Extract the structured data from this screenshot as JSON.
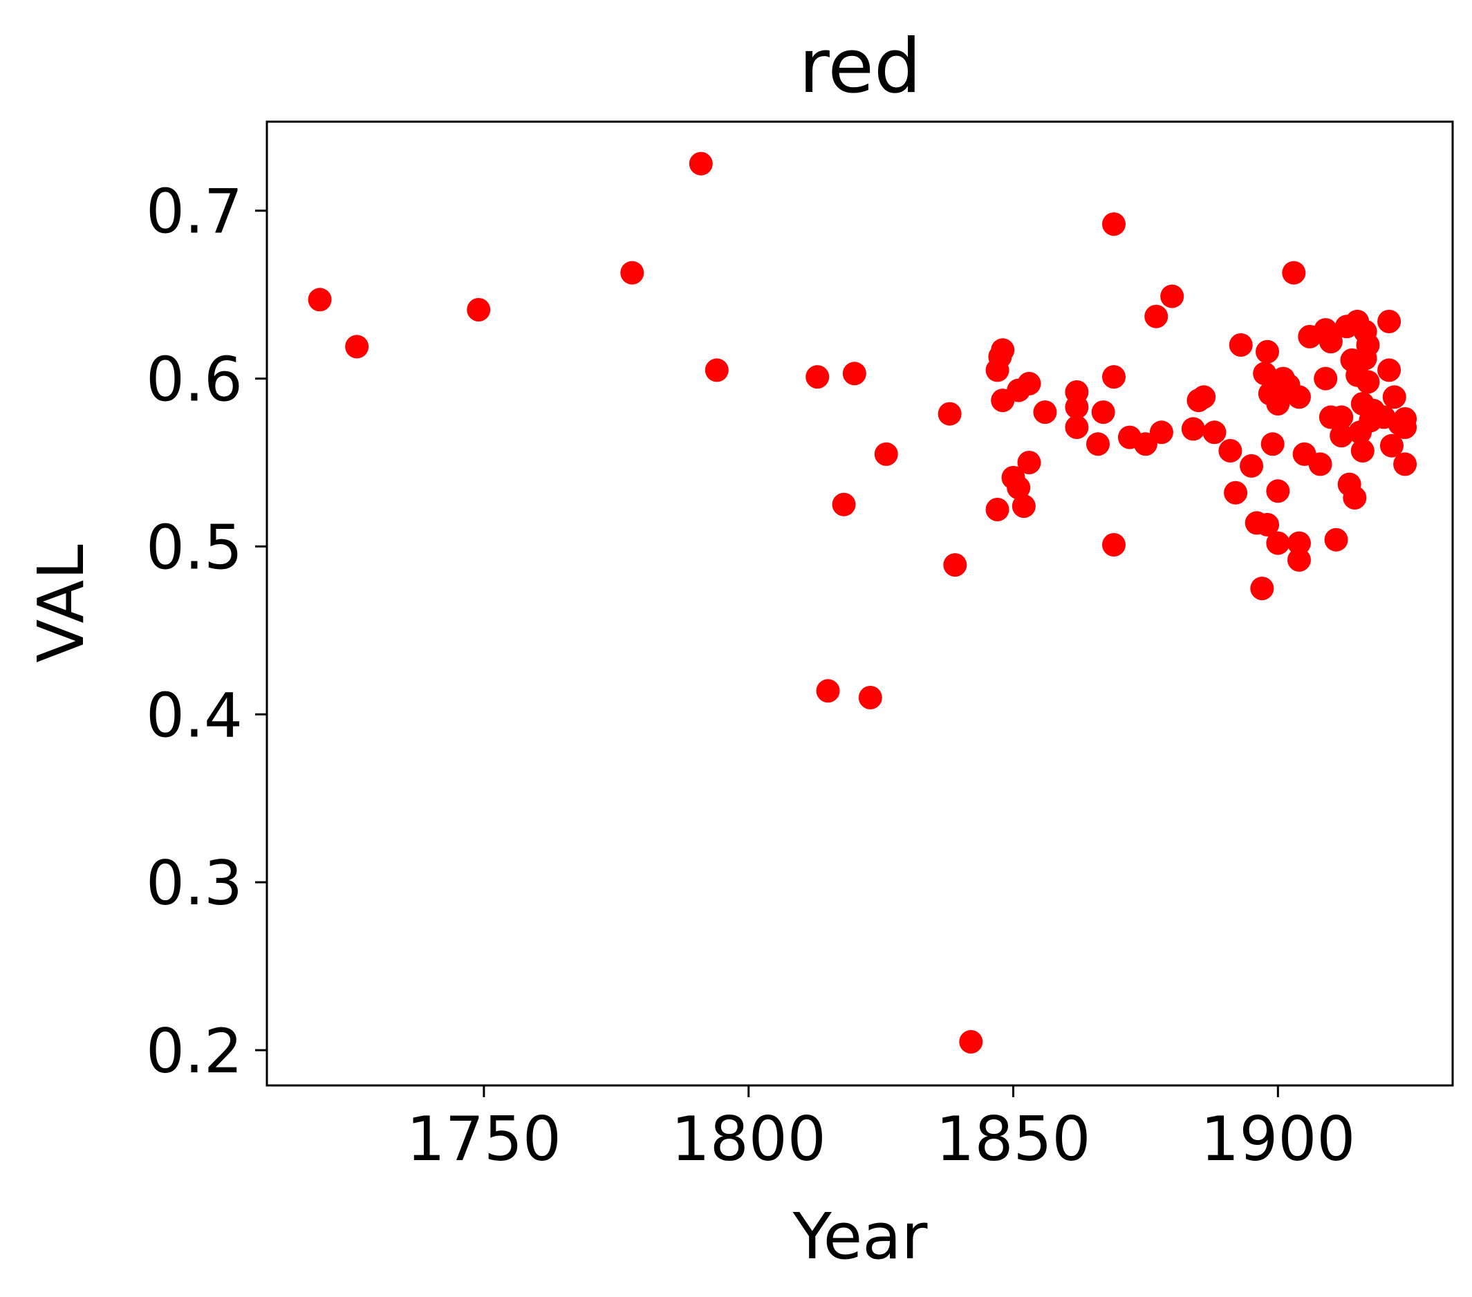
{
  "chart_data": {
    "type": "scatter",
    "title": "red",
    "xlabel": "Year",
    "ylabel": "VAL",
    "xlim": [
      1709,
      1933
    ],
    "ylim": [
      0.179,
      0.753
    ],
    "xticks": [
      1750,
      1800,
      1850,
      1900
    ],
    "xtick_labels": [
      "1750",
      "1800",
      "1850",
      "1900"
    ],
    "yticks": [
      0.2,
      0.3,
      0.4,
      0.5,
      0.6,
      0.7
    ],
    "ytick_labels": [
      "0.2",
      "0.3",
      "0.4",
      "0.5",
      "0.6",
      "0.7"
    ],
    "grid": false,
    "legend": "none",
    "marker_color": "#ff0000",
    "series": [
      {
        "points": [
          [
            1719.0,
            0.647
          ],
          [
            1726.0,
            0.619
          ],
          [
            1749.0,
            0.641
          ],
          [
            1778.0,
            0.663
          ],
          [
            1791.0,
            0.728
          ],
          [
            1794.0,
            0.605
          ],
          [
            1813.0,
            0.601
          ],
          [
            1815.0,
            0.414
          ],
          [
            1818.0,
            0.525
          ],
          [
            1820.0,
            0.603
          ],
          [
            1823.0,
            0.41
          ],
          [
            1826.0,
            0.555
          ],
          [
            1838.0,
            0.579
          ],
          [
            1839.0,
            0.489
          ],
          [
            1842.0,
            0.205
          ],
          [
            1847.0,
            0.605
          ],
          [
            1847.5,
            0.613
          ],
          [
            1848.0,
            0.617
          ],
          [
            1848.0,
            0.587
          ],
          [
            1847.0,
            0.522
          ],
          [
            1850.0,
            0.541
          ],
          [
            1851.0,
            0.535
          ],
          [
            1851.0,
            0.593
          ],
          [
            1852.0,
            0.524
          ],
          [
            1853.0,
            0.597
          ],
          [
            1853.0,
            0.55
          ],
          [
            1856.0,
            0.58
          ],
          [
            1862.0,
            0.592
          ],
          [
            1862.0,
            0.583
          ],
          [
            1862.0,
            0.571
          ],
          [
            1866.0,
            0.561
          ],
          [
            1867.0,
            0.58
          ],
          [
            1869.0,
            0.692
          ],
          [
            1869.0,
            0.601
          ],
          [
            1869.0,
            0.501
          ],
          [
            1872.0,
            0.565
          ],
          [
            1875.0,
            0.561
          ],
          [
            1877.0,
            0.637
          ],
          [
            1878.0,
            0.568
          ],
          [
            1880.0,
            0.649
          ],
          [
            1884.0,
            0.57
          ],
          [
            1885.0,
            0.587
          ],
          [
            1886.0,
            0.589
          ],
          [
            1888.0,
            0.568
          ],
          [
            1891.0,
            0.557
          ],
          [
            1892.0,
            0.532
          ],
          [
            1893.0,
            0.62
          ],
          [
            1895.0,
            0.548
          ],
          [
            1896.0,
            0.514
          ],
          [
            1897.0,
            0.475
          ],
          [
            1897.5,
            0.603
          ],
          [
            1898.0,
            0.616
          ],
          [
            1898.0,
            0.513
          ],
          [
            1898.5,
            0.591
          ],
          [
            1899.0,
            0.561
          ],
          [
            1900.0,
            0.502
          ],
          [
            1900.0,
            0.585
          ],
          [
            1900.0,
            0.533
          ],
          [
            1901.0,
            0.6
          ],
          [
            1901.0,
            0.594
          ],
          [
            1902.0,
            0.596
          ],
          [
            1903.0,
            0.663
          ],
          [
            1904.0,
            0.589
          ],
          [
            1904.0,
            0.502
          ],
          [
            1904.0,
            0.492
          ],
          [
            1905.0,
            0.555
          ],
          [
            1906.0,
            0.625
          ],
          [
            1908.0,
            0.549
          ],
          [
            1909.0,
            0.629
          ],
          [
            1909.0,
            0.6
          ],
          [
            1910.0,
            0.622
          ],
          [
            1910.0,
            0.577
          ],
          [
            1911.0,
            0.504
          ],
          [
            1912.0,
            0.577
          ],
          [
            1912.0,
            0.566
          ],
          [
            1913.0,
            0.631
          ],
          [
            1913.5,
            0.537
          ],
          [
            1914.0,
            0.611
          ],
          [
            1914.5,
            0.529
          ],
          [
            1915.0,
            0.634
          ],
          [
            1915.0,
            0.602
          ],
          [
            1915.5,
            0.568
          ],
          [
            1916.0,
            0.585
          ],
          [
            1916.0,
            0.557
          ],
          [
            1916.5,
            0.628
          ],
          [
            1916.5,
            0.612
          ],
          [
            1917.0,
            0.62
          ],
          [
            1917.0,
            0.598
          ],
          [
            1917.5,
            0.575
          ],
          [
            1918.0,
            0.581
          ],
          [
            1920.0,
            0.577
          ],
          [
            1921.0,
            0.634
          ],
          [
            1921.0,
            0.605
          ],
          [
            1921.5,
            0.56
          ],
          [
            1922.0,
            0.589
          ],
          [
            1923.0,
            0.573
          ],
          [
            1924.0,
            0.576
          ],
          [
            1924.0,
            0.571
          ],
          [
            1924.0,
            0.549
          ]
        ]
      }
    ]
  }
}
